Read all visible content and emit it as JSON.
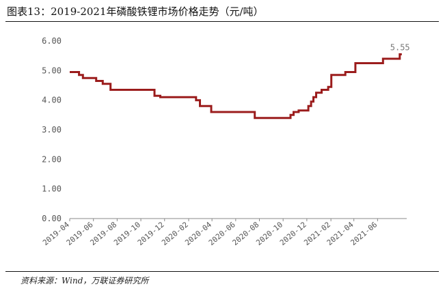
{
  "figure": {
    "title": "图表13：2019-2021年磷酸铁锂市场价格走势（元/吨）",
    "source": "资料来源：Wind，万联证券研究所"
  },
  "chart_data": {
    "type": "line",
    "title": "2019-2021年磷酸铁锂市场价格走势（元/吨）",
    "xlabel": "",
    "ylabel": "",
    "ylim": [
      0,
      6
    ],
    "yticks": [
      "0.00",
      "1.00",
      "2.00",
      "3.00",
      "4.00",
      "5.00",
      "6.00"
    ],
    "xlim": [
      "2019-04-01",
      "2021-08-15"
    ],
    "xticks": [
      "2019-04",
      "2019-06",
      "2019-08",
      "2019-10",
      "2019-12",
      "2020-02",
      "2020-04",
      "2020-06",
      "2020-08",
      "2020-10",
      "2020-12",
      "2021-02",
      "2021-04",
      "2021-06"
    ],
    "line_style": "step",
    "color": "#9b1c1c",
    "grid": false,
    "legend": "none",
    "end_label": "5.55",
    "series": [
      {
        "values": [
          [
            "2019-04-01",
            4.95
          ],
          [
            "2019-04-25",
            4.85
          ],
          [
            "2019-05-05",
            4.75
          ],
          [
            "2019-06-08",
            4.65
          ],
          [
            "2019-06-25",
            4.55
          ],
          [
            "2019-07-15",
            4.35
          ],
          [
            "2019-11-05",
            4.15
          ],
          [
            "2019-11-20",
            4.1
          ],
          [
            "2020-02-20",
            4.0
          ],
          [
            "2020-03-01",
            3.8
          ],
          [
            "2020-03-30",
            3.6
          ],
          [
            "2020-07-20",
            3.4
          ],
          [
            "2020-10-20",
            3.5
          ],
          [
            "2020-10-28",
            3.6
          ],
          [
            "2020-11-10",
            3.65
          ],
          [
            "2020-12-05",
            3.8
          ],
          [
            "2020-12-12",
            3.95
          ],
          [
            "2020-12-18",
            4.1
          ],
          [
            "2020-12-25",
            4.25
          ],
          [
            "2021-01-08",
            4.35
          ],
          [
            "2021-01-25",
            4.45
          ],
          [
            "2021-02-02",
            4.85
          ],
          [
            "2021-03-10",
            4.95
          ],
          [
            "2021-04-05",
            5.25
          ],
          [
            "2021-06-15",
            5.4
          ],
          [
            "2021-07-28",
            5.55
          ]
        ]
      }
    ]
  }
}
